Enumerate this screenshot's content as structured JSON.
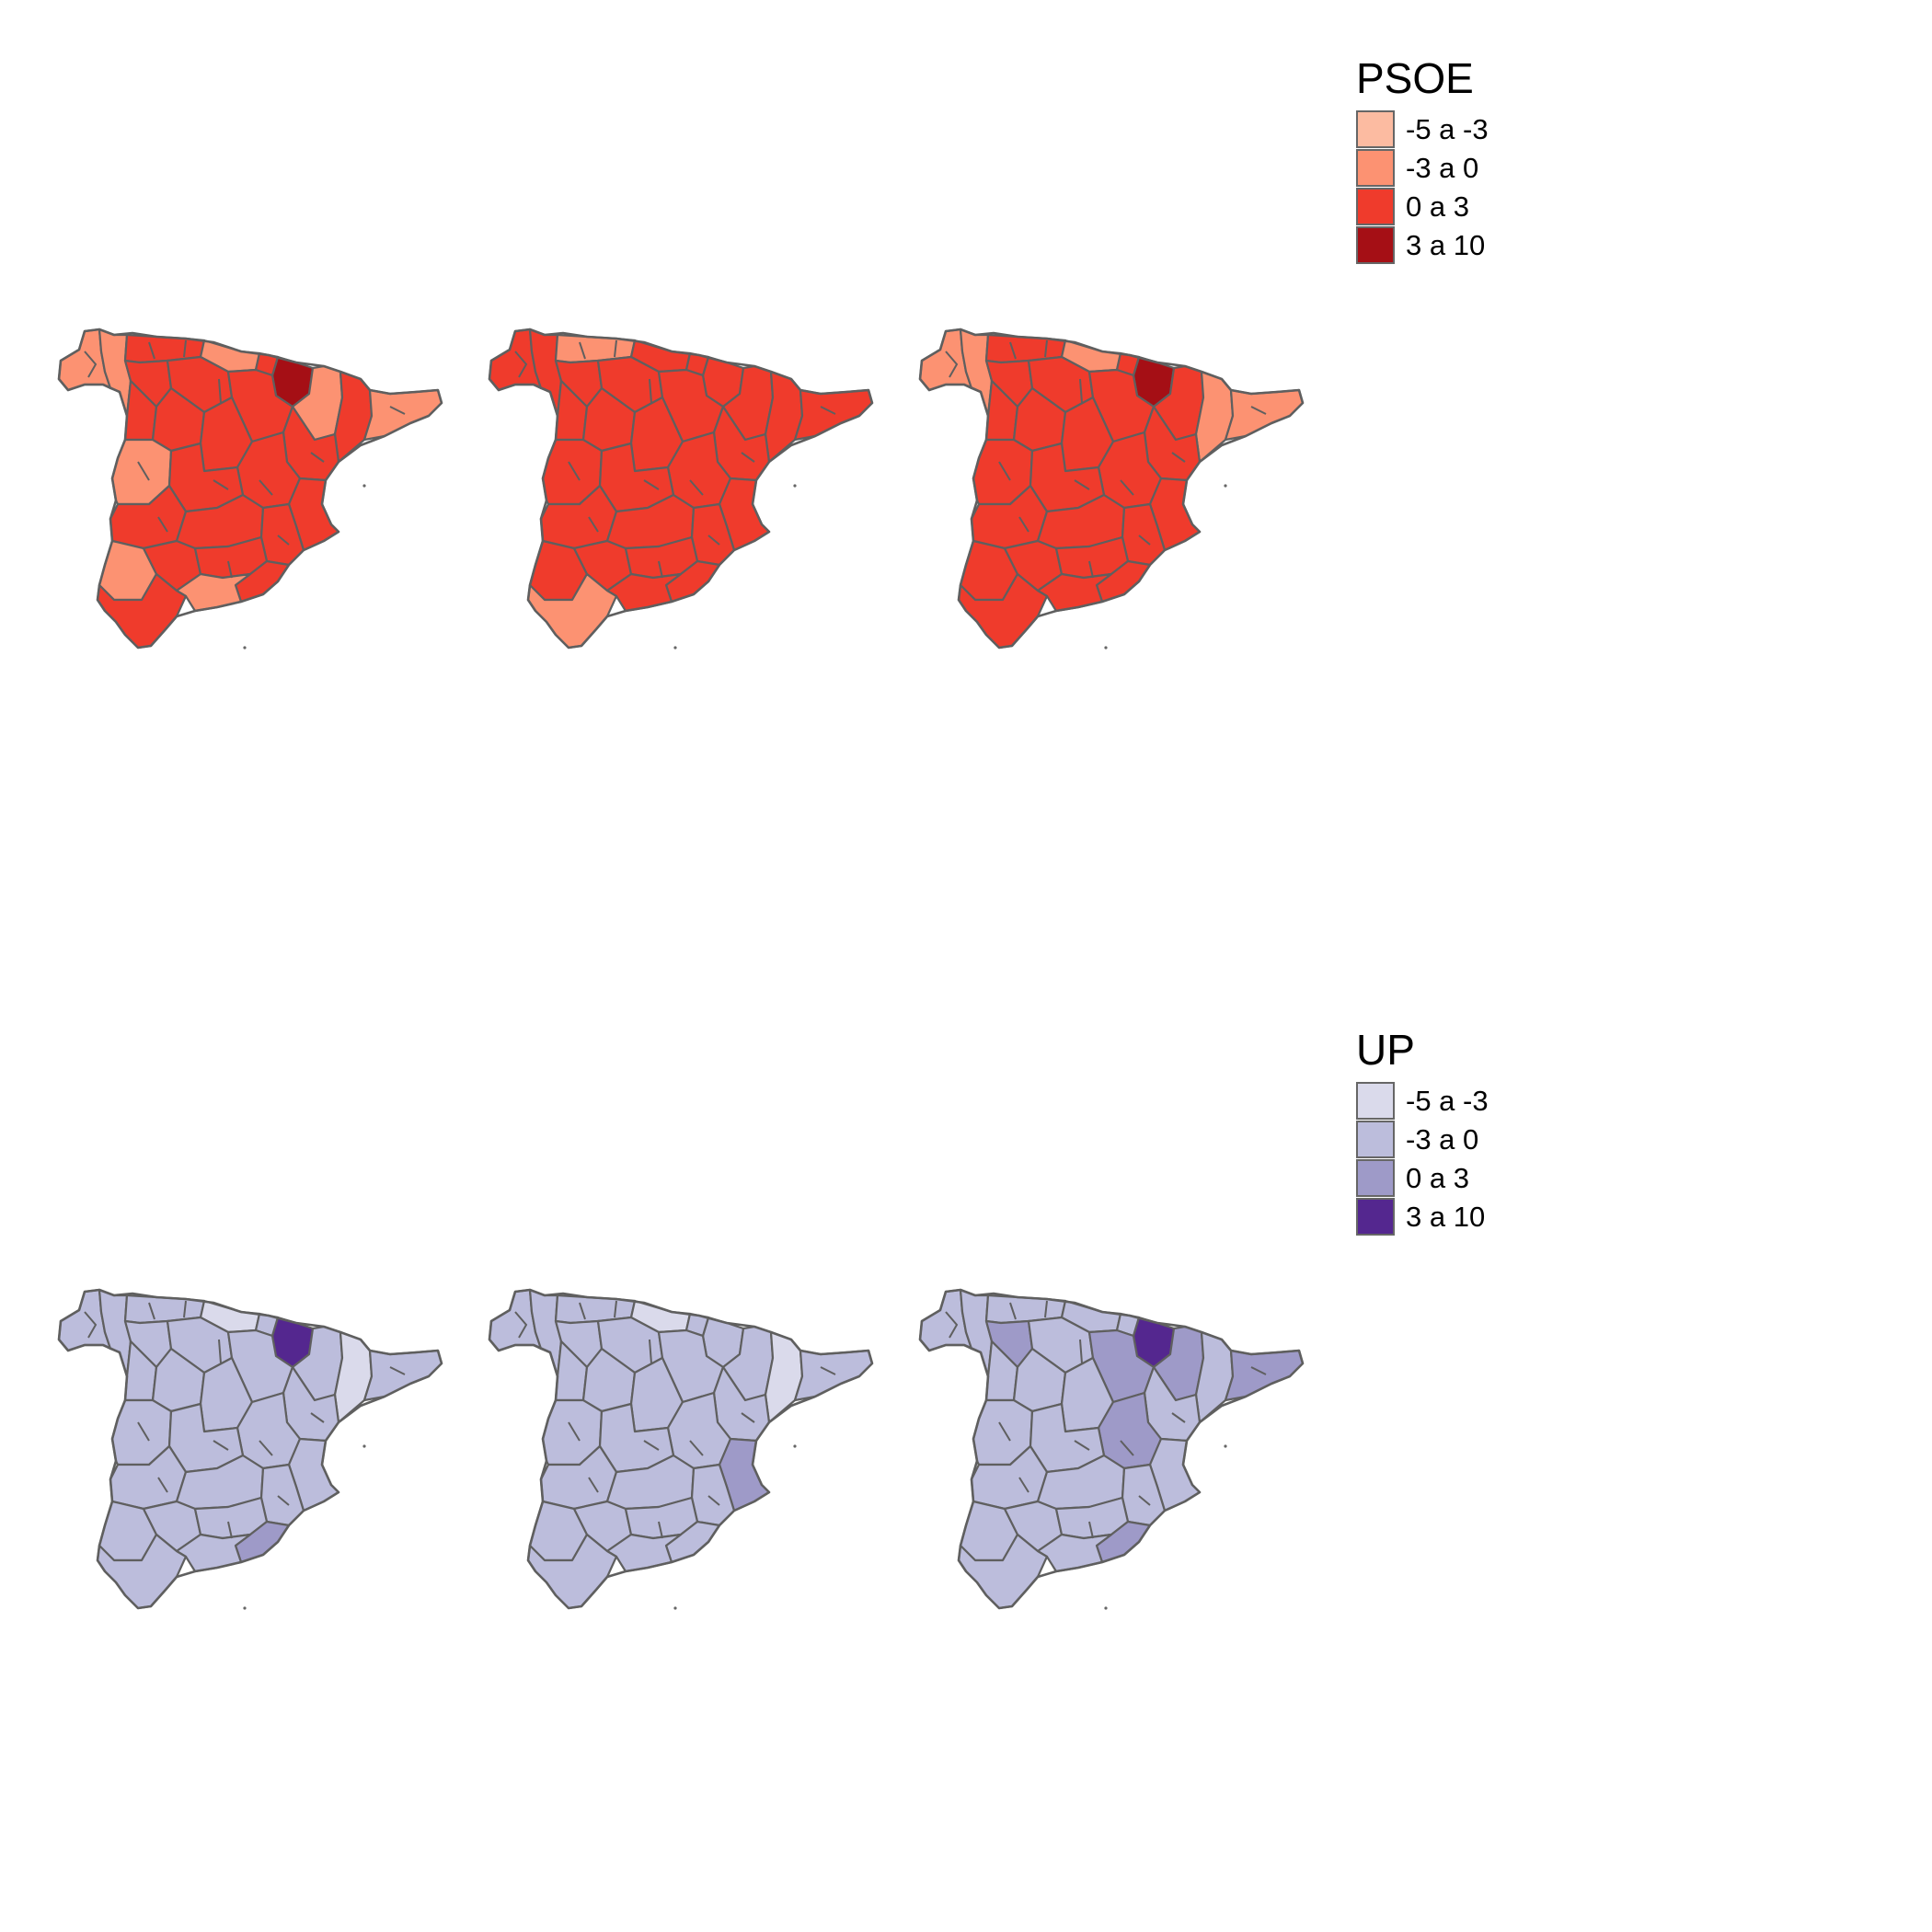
{
  "legends": [
    {
      "title": "PSOE",
      "items": [
        {
          "label": "-5 a -3",
          "color": "#fcbba1"
        },
        {
          "label": "-3 a 0",
          "color": "#fc9272"
        },
        {
          "label": "0 a 3",
          "color": "#ef3b2c"
        },
        {
          "label": "3 a 10",
          "color": "#a50f15"
        }
      ]
    },
    {
      "title": "UP",
      "items": [
        {
          "label": "-5 a -3",
          "color": "#dadaeb"
        },
        {
          "label": "-3 a 0",
          "color": "#bcbddc"
        },
        {
          "label": "0 a 3",
          "color": "#9e9ac8"
        },
        {
          "label": "3 a 10",
          "color": "#54278f"
        }
      ]
    }
  ],
  "maps": [
    {
      "party": "PSOE",
      "panel": 1,
      "base": "0 a 3",
      "highlights": [
        {
          "region": "navarra",
          "class": "3 a 10"
        },
        {
          "region": "galicia-west",
          "class": "-3 a 0"
        },
        {
          "region": "lugo",
          "class": "-3 a 0"
        },
        {
          "region": "cantabria",
          "class": "-3 a 0"
        },
        {
          "region": "aragon-north",
          "class": "-3 a 0"
        },
        {
          "region": "girona",
          "class": "-3 a 0"
        },
        {
          "region": "caceres",
          "class": "-3 a 0"
        },
        {
          "region": "sevilla",
          "class": "-3 a 0"
        },
        {
          "region": "granada",
          "class": "-3 a 0"
        }
      ]
    },
    {
      "party": "PSOE",
      "panel": 2,
      "base": "0 a 3",
      "highlights": [
        {
          "region": "asturias",
          "class": "-3 a 0"
        },
        {
          "region": "cadiz",
          "class": "-3 a 0"
        }
      ]
    },
    {
      "party": "PSOE",
      "panel": 3,
      "base": "0 a 3",
      "highlights": [
        {
          "region": "navarra",
          "class": "3 a 10"
        },
        {
          "region": "galicia-west",
          "class": "-3 a 0"
        },
        {
          "region": "lugo",
          "class": "-3 a 0"
        },
        {
          "region": "cantabria",
          "class": "-3 a 0"
        },
        {
          "region": "catalonia-west",
          "class": "-3 a 0"
        },
        {
          "region": "girona",
          "class": "-3 a 0"
        }
      ]
    },
    {
      "party": "UP",
      "panel": 1,
      "base": "-3 a 0",
      "highlights": [
        {
          "region": "navarra",
          "class": "3 a 10"
        },
        {
          "region": "catalonia-west",
          "class": "-5 a -3"
        },
        {
          "region": "cantabria",
          "class": "-5 a -3"
        },
        {
          "region": "murcia",
          "class": "0 a 3"
        }
      ]
    },
    {
      "party": "UP",
      "panel": 2,
      "base": "-3 a 0",
      "highlights": [
        {
          "region": "catalonia-west",
          "class": "-5 a -3"
        },
        {
          "region": "cantabria",
          "class": "-5 a -3"
        },
        {
          "region": "valencia-coast",
          "class": "0 a 3"
        }
      ]
    },
    {
      "party": "UP",
      "panel": 3,
      "base": "-3 a 0",
      "highlights": [
        {
          "region": "navarra",
          "class": "3 a 10"
        },
        {
          "region": "leon",
          "class": "0 a 3"
        },
        {
          "region": "castile-east",
          "class": "0 a 3"
        },
        {
          "region": "aragon-north",
          "class": "0 a 3"
        },
        {
          "region": "cuenca",
          "class": "0 a 3"
        },
        {
          "region": "girona",
          "class": "0 a 3"
        },
        {
          "region": "murcia",
          "class": "0 a 3"
        }
      ]
    }
  ]
}
